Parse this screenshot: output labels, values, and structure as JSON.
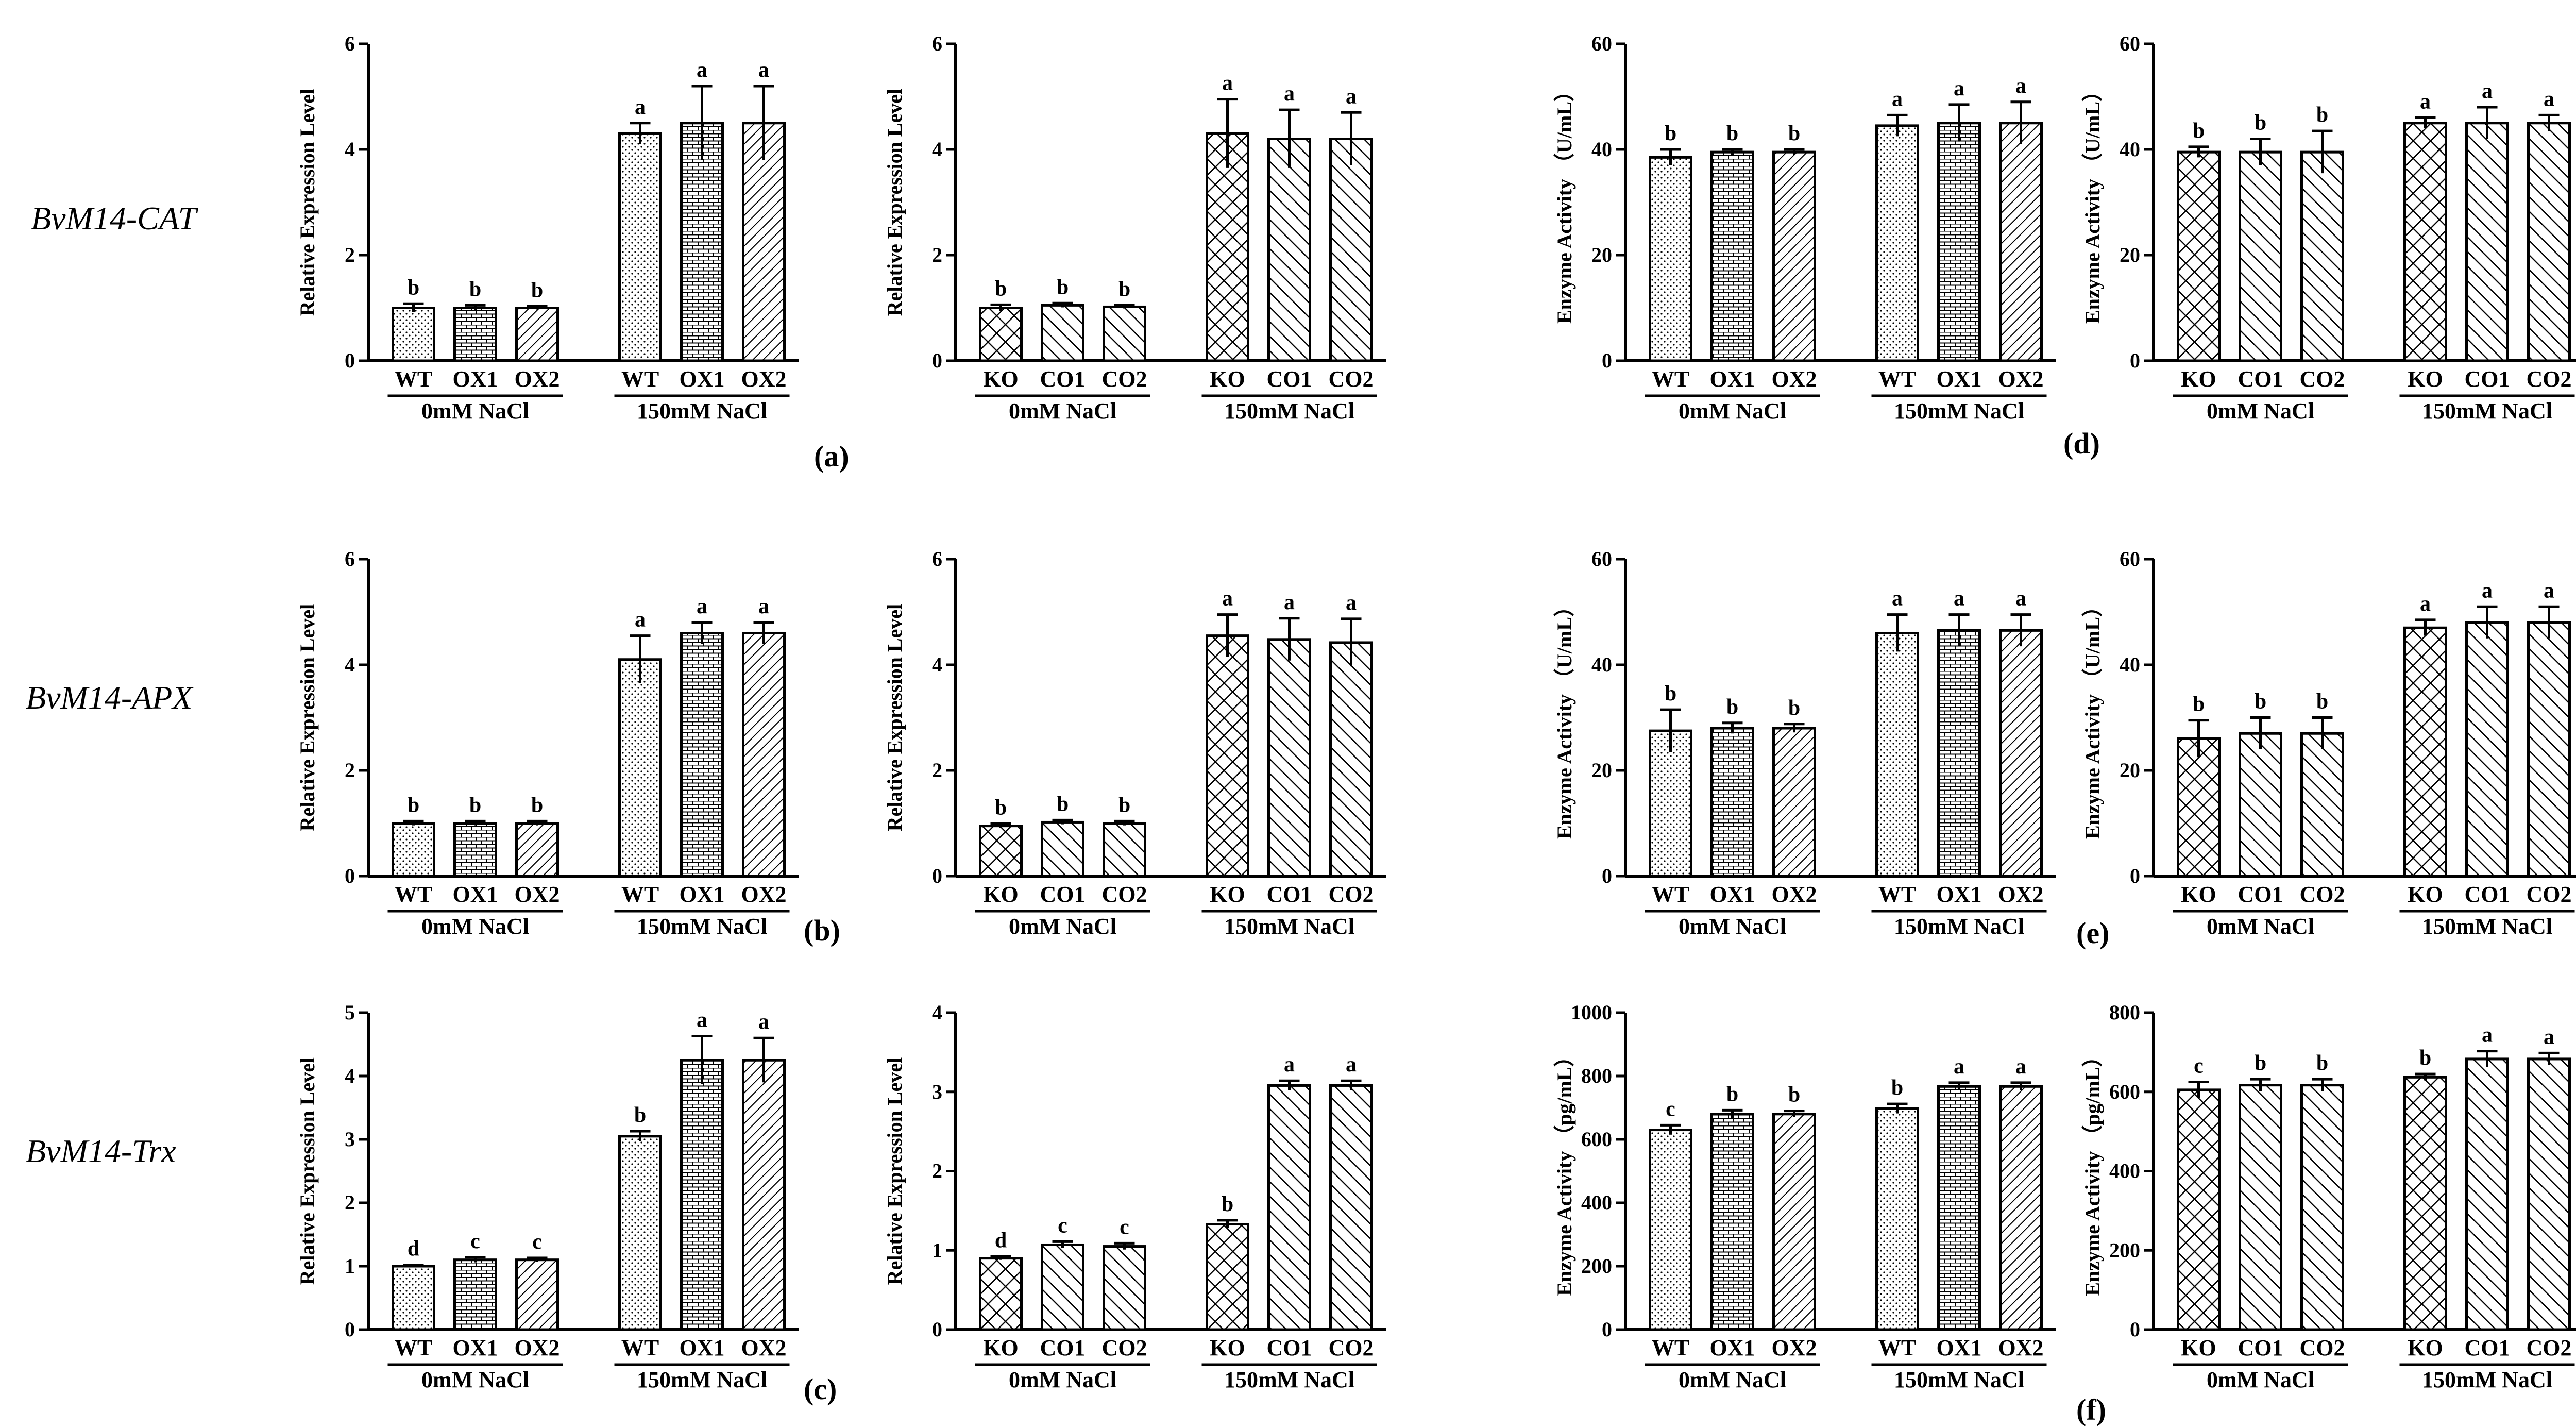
{
  "row_labels": [
    "BvM14-CAT",
    "BvM14-APX",
    "BvM14-Trx"
  ],
  "panel_labels": [
    "(a)",
    "(b)",
    "(c)",
    "(d)",
    "(e)",
    "(f)"
  ],
  "chart_data": [
    {
      "type": "bar",
      "row": 0,
      "col": 0,
      "ylabel": "Relative Expression Level",
      "ylim": [
        0,
        6
      ],
      "yticks": [
        0,
        2,
        4,
        6
      ],
      "groups": [
        "0mM NaCl",
        "150mM NaCl"
      ],
      "categories": [
        "WT",
        "OX1",
        "OX2",
        "WT",
        "OX1",
        "OX2"
      ],
      "patterns": [
        "dots",
        "bricks",
        "diag",
        "dots",
        "bricks",
        "diag"
      ],
      "values": [
        1.0,
        1.0,
        1.0,
        4.3,
        4.5,
        4.5
      ],
      "errors": [
        0.08,
        0.05,
        0.03,
        0.2,
        0.7,
        0.7
      ],
      "sig": [
        "b",
        "b",
        "b",
        "a",
        "a",
        "a"
      ]
    },
    {
      "type": "bar",
      "row": 0,
      "col": 1,
      "ylabel": "Relative Expression Level",
      "ylim": [
        0,
        6
      ],
      "yticks": [
        0,
        2,
        4,
        6
      ],
      "groups": [
        "0mM NaCl",
        "150mM NaCl"
      ],
      "categories": [
        "KO",
        "CO1",
        "CO2",
        "KO",
        "CO1",
        "CO2"
      ],
      "patterns": [
        "cross",
        "back",
        "back",
        "cross",
        "back",
        "back"
      ],
      "values": [
        1.0,
        1.05,
        1.02,
        4.3,
        4.2,
        4.2
      ],
      "errors": [
        0.06,
        0.04,
        0.03,
        0.65,
        0.55,
        0.5
      ],
      "sig": [
        "b",
        "b",
        "b",
        "a",
        "a",
        "a"
      ]
    },
    {
      "type": "bar",
      "row": 0,
      "col": 2,
      "ylabel": "Enzyme Activity （U/mL）",
      "ylim": [
        0,
        60
      ],
      "yticks": [
        0,
        20,
        40,
        60
      ],
      "groups": [
        "0mM NaCl",
        "150mM NaCl"
      ],
      "categories": [
        "WT",
        "OX1",
        "OX2",
        "WT",
        "OX1",
        "OX2"
      ],
      "patterns": [
        "dots",
        "bricks",
        "diag",
        "dots",
        "bricks",
        "diag"
      ],
      "values": [
        38.5,
        39.5,
        39.5,
        44.5,
        45.0,
        45.0
      ],
      "errors": [
        1.5,
        0.5,
        0.5,
        2.0,
        3.5,
        4.0
      ],
      "sig": [
        "b",
        "b",
        "b",
        "a",
        "a",
        "a"
      ]
    },
    {
      "type": "bar",
      "row": 0,
      "col": 3,
      "ylabel": "Enzyme Activity （U/mL）",
      "ylim": [
        0,
        60
      ],
      "yticks": [
        0,
        20,
        40,
        60
      ],
      "groups": [
        "0mM NaCl",
        "150mM NaCl"
      ],
      "categories": [
        "KO",
        "CO1",
        "CO2",
        "KO",
        "CO1",
        "CO2"
      ],
      "patterns": [
        "cross",
        "back",
        "back",
        "cross",
        "back",
        "back"
      ],
      "values": [
        39.5,
        39.5,
        39.5,
        45.0,
        45.0,
        45.0
      ],
      "errors": [
        1.0,
        2.5,
        4.0,
        1.0,
        3.0,
        1.5
      ],
      "sig": [
        "b",
        "b",
        "b",
        "a",
        "a",
        "a"
      ]
    },
    {
      "type": "bar",
      "row": 1,
      "col": 0,
      "ylabel": "Relative Expression Level",
      "ylim": [
        0,
        6
      ],
      "yticks": [
        0,
        2,
        4,
        6
      ],
      "groups": [
        "0mM NaCl",
        "150mM NaCl"
      ],
      "categories": [
        "WT",
        "OX1",
        "OX2",
        "WT",
        "OX1",
        "OX2"
      ],
      "patterns": [
        "dots",
        "bricks",
        "diag",
        "dots",
        "bricks",
        "diag"
      ],
      "values": [
        1.0,
        1.0,
        1.0,
        4.1,
        4.6,
        4.6
      ],
      "errors": [
        0.04,
        0.04,
        0.04,
        0.45,
        0.2,
        0.2
      ],
      "sig": [
        "b",
        "b",
        "b",
        "a",
        "a",
        "a"
      ]
    },
    {
      "type": "bar",
      "row": 1,
      "col": 1,
      "ylabel": "Relative Expression Level",
      "ylim": [
        0,
        6
      ],
      "yticks": [
        0,
        2,
        4,
        6
      ],
      "groups": [
        "0mM NaCl",
        "150mM NaCl"
      ],
      "categories": [
        "KO",
        "CO1",
        "CO2",
        "KO",
        "CO1",
        "CO2"
      ],
      "patterns": [
        "cross",
        "back",
        "back",
        "cross",
        "back",
        "back"
      ],
      "values": [
        0.95,
        1.02,
        1.0,
        4.55,
        4.48,
        4.42
      ],
      "errors": [
        0.04,
        0.04,
        0.04,
        0.4,
        0.4,
        0.45
      ],
      "sig": [
        "b",
        "b",
        "b",
        "a",
        "a",
        "a"
      ]
    },
    {
      "type": "bar",
      "row": 1,
      "col": 2,
      "ylabel": "Enzyme Activity （U/mL）",
      "ylim": [
        0,
        60
      ],
      "yticks": [
        0,
        20,
        40,
        60
      ],
      "groups": [
        "0mM NaCl",
        "150mM NaCl"
      ],
      "categories": [
        "WT",
        "OX1",
        "OX2",
        "WT",
        "OX1",
        "OX2"
      ],
      "patterns": [
        "dots",
        "bricks",
        "diag",
        "dots",
        "bricks",
        "diag"
      ],
      "values": [
        27.5,
        28.0,
        28.0,
        46.0,
        46.5,
        46.5
      ],
      "errors": [
        4.0,
        1.0,
        0.8,
        3.5,
        3.0,
        3.0
      ],
      "sig": [
        "b",
        "b",
        "b",
        "a",
        "a",
        "a"
      ]
    },
    {
      "type": "bar",
      "row": 1,
      "col": 3,
      "ylabel": "Enzyme Activity （U/mL）",
      "ylim": [
        0,
        60
      ],
      "yticks": [
        0,
        20,
        40,
        60
      ],
      "groups": [
        "0mM NaCl",
        "150mM NaCl"
      ],
      "categories": [
        "KO",
        "CO1",
        "CO2",
        "KO",
        "CO1",
        "CO2"
      ],
      "patterns": [
        "cross",
        "back",
        "back",
        "cross",
        "back",
        "back"
      ],
      "values": [
        26.0,
        27.0,
        27.0,
        47.0,
        48.0,
        48.0
      ],
      "errors": [
        3.5,
        3.0,
        3.0,
        1.5,
        3.0,
        3.0
      ],
      "sig": [
        "b",
        "b",
        "b",
        "a",
        "a",
        "a"
      ]
    },
    {
      "type": "bar",
      "row": 2,
      "col": 0,
      "ylabel": "Relative Expression Level",
      "ylim": [
        0,
        5
      ],
      "yticks": [
        0,
        1,
        2,
        3,
        4,
        5
      ],
      "groups": [
        "0mM NaCl",
        "150mM NaCl"
      ],
      "categories": [
        "WT",
        "OX1",
        "OX2",
        "WT",
        "OX1",
        "OX2"
      ],
      "patterns": [
        "dots",
        "bricks",
        "diag",
        "dots",
        "bricks",
        "diag"
      ],
      "values": [
        1.0,
        1.1,
        1.1,
        3.05,
        4.25,
        4.25
      ],
      "errors": [
        0.02,
        0.04,
        0.03,
        0.08,
        0.38,
        0.35
      ],
      "sig": [
        "d",
        "c",
        "c",
        "b",
        "a",
        "a"
      ]
    },
    {
      "type": "bar",
      "row": 2,
      "col": 1,
      "ylabel": "Relative Expression Level",
      "ylim": [
        0,
        4
      ],
      "yticks": [
        0,
        1,
        2,
        3,
        4
      ],
      "groups": [
        "0mM NaCl",
        "150mM NaCl"
      ],
      "categories": [
        "KO",
        "CO1",
        "CO2",
        "KO",
        "CO1",
        "CO2"
      ],
      "patterns": [
        "cross",
        "back",
        "back",
        "cross",
        "back",
        "back"
      ],
      "values": [
        0.9,
        1.07,
        1.05,
        1.33,
        3.08,
        3.08
      ],
      "errors": [
        0.02,
        0.04,
        0.04,
        0.05,
        0.06,
        0.06
      ],
      "sig": [
        "d",
        "c",
        "c",
        "b",
        "a",
        "a"
      ]
    },
    {
      "type": "bar",
      "row": 2,
      "col": 2,
      "ylabel": "Enzyme Activity （pg/mL）",
      "ylim": [
        0,
        1000
      ],
      "yticks": [
        0,
        200,
        400,
        600,
        800,
        1000
      ],
      "groups": [
        "0mM NaCl",
        "150mM NaCl"
      ],
      "categories": [
        "WT",
        "OX1",
        "OX2",
        "WT",
        "OX1",
        "OX2"
      ],
      "patterns": [
        "dots",
        "bricks",
        "diag",
        "dots",
        "bricks",
        "diag"
      ],
      "values": [
        630,
        680,
        680,
        697,
        767,
        767
      ],
      "errors": [
        15,
        12,
        10,
        15,
        12,
        12
      ],
      "sig": [
        "c",
        "b",
        "b",
        "b",
        "a",
        "a"
      ]
    },
    {
      "type": "bar",
      "row": 2,
      "col": 3,
      "ylabel": "Enzyme Activity （pg/mL）",
      "ylim": [
        0,
        800
      ],
      "yticks": [
        0,
        200,
        400,
        600,
        800
      ],
      "groups": [
        "0mM NaCl",
        "150mM NaCl"
      ],
      "categories": [
        "KO",
        "CO1",
        "CO2",
        "KO",
        "CO1",
        "CO2"
      ],
      "patterns": [
        "cross",
        "back",
        "back",
        "cross",
        "back",
        "back"
      ],
      "values": [
        605,
        617,
        617,
        637,
        683,
        683
      ],
      "errors": [
        20,
        15,
        15,
        8,
        20,
        15
      ],
      "sig": [
        "c",
        "b",
        "b",
        "b",
        "a",
        "a"
      ]
    }
  ]
}
